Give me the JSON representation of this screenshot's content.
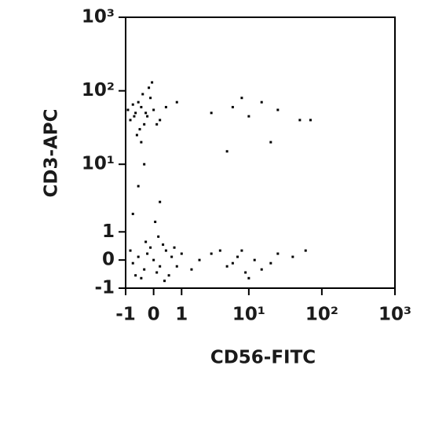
{
  "chart_data": {
    "type": "scatter",
    "x_label": "CD56-FITC",
    "y_label": "CD3-APC",
    "xscale": "asinh",
    "yscale": "asinh",
    "xlim": [
      -1,
      1000
    ],
    "ylim": [
      -1,
      1000
    ],
    "xticks": [
      -1,
      0,
      1,
      {
        "value": 10,
        "label": "10¹"
      },
      {
        "value": 100,
        "label": "10²"
      },
      {
        "value": 1000,
        "label": "10³"
      }
    ],
    "yticks": [
      -1,
      0,
      1,
      {
        "value": 10,
        "label": "10¹"
      },
      {
        "value": 100,
        "label": "10²"
      },
      {
        "value": 1000,
        "label": "10³"
      }
    ],
    "color": "#000000",
    "x": [
      -0.6,
      -0.4,
      -0.2,
      -0.8,
      -0.5,
      -0.3,
      0.0,
      -0.7,
      -0.1,
      -0.45,
      -0.25,
      -0.9,
      0.2,
      -0.35,
      -0.55,
      0.4,
      -0.15,
      -0.65,
      0.1,
      -0.05,
      0.8,
      -0.4,
      0,
      -0.2,
      0.2,
      -0.5,
      0.4,
      0.1,
      -0.3,
      0.6,
      -0.7,
      0.3,
      -0.1,
      0.8,
      -0.4,
      0.5,
      1.0,
      -0.8,
      0.15,
      -0.25,
      1.5,
      0.35,
      -0.6,
      0.7,
      0.05,
      2.0,
      3,
      5,
      7,
      9,
      4,
      12,
      8,
      6,
      15,
      25,
      40,
      60,
      10,
      20,
      3,
      6,
      10,
      15,
      25,
      50,
      8,
      20,
      5,
      70,
      -0.5,
      -0.3,
      0.2,
      -0.7
    ],
    "values": [
      50,
      60,
      45,
      40,
      70,
      35,
      55,
      65,
      80,
      30,
      50,
      55,
      40,
      90,
      25,
      60,
      110,
      45,
      35,
      130,
      70,
      20,
      0,
      0.2,
      -0.2,
      0.1,
      0.3,
      -0.4,
      -0.3,
      0.1,
      -0.1,
      0.5,
      0.4,
      -0.2,
      -0.6,
      -0.5,
      0.2,
      0.3,
      0.8,
      0.6,
      -0.3,
      -0.7,
      -0.5,
      0.4,
      1.5,
      0.0,
      0.2,
      -0.2,
      0.1,
      -0.4,
      0.3,
      0.0,
      0.3,
      -0.1,
      -0.3,
      0.2,
      0.1,
      0.3,
      -0.6,
      -0.1,
      50,
      60,
      45,
      70,
      55,
      40,
      80,
      20,
      15,
      40,
      5,
      10,
      3,
      2
    ]
  }
}
